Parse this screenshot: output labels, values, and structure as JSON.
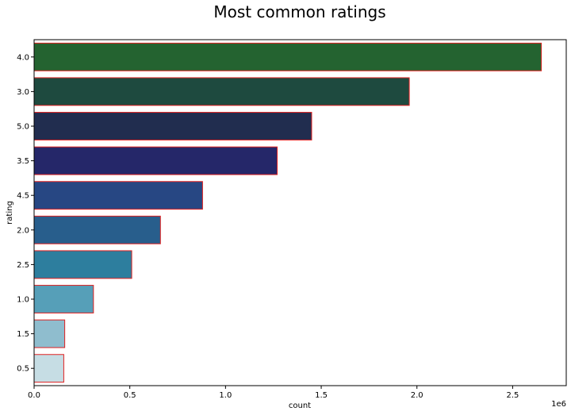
{
  "chart_data": {
    "type": "bar",
    "orientation": "horizontal",
    "title": "Most common ratings",
    "xlabel": "count",
    "ylabel": "rating",
    "x_offset_label": "1e6",
    "categories": [
      "4.0",
      "3.0",
      "5.0",
      "3.5",
      "4.5",
      "2.0",
      "2.5",
      "1.0",
      "1.5",
      "0.5"
    ],
    "values": [
      2650000,
      1960000,
      1450000,
      1270000,
      880000,
      660000,
      510000,
      310000,
      160000,
      155000
    ],
    "xlim": [
      0,
      2780000
    ],
    "x_ticks": [
      0,
      500000,
      1000000,
      1500000,
      2000000,
      2500000
    ],
    "x_tick_labels": [
      "0.0",
      "0.5",
      "1.0",
      "1.5",
      "2.0",
      "2.5"
    ],
    "grid": false,
    "colors": [
      "#246330",
      "#1e4a3f",
      "#212d4f",
      "#252769",
      "#274783",
      "#285e8c",
      "#2d7e9e",
      "#569fb8",
      "#8fbdce",
      "#c6dde4"
    ],
    "edge_color": "#e02020"
  }
}
